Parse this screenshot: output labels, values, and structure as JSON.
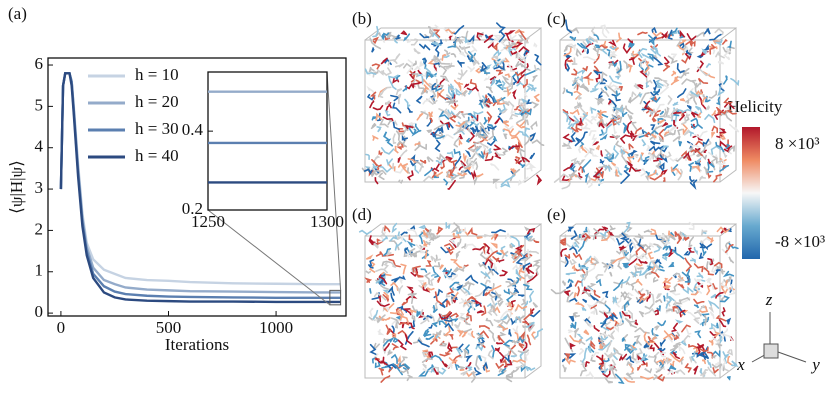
{
  "panel_label": "(a)",
  "chart_data": [
    {
      "type": "line",
      "xlabel": "Iterations",
      "ylabel": "⟨ψ|H|ψ⟩",
      "x": [
        0,
        10,
        20,
        30,
        40,
        50,
        60,
        80,
        100,
        120,
        150,
        200,
        250,
        300,
        400,
        500,
        600,
        800,
        1000,
        1200,
        1300
      ],
      "series": [
        {
          "name": "h = 10",
          "color": "#c6d3e3",
          "values": [
            3,
            5.5,
            5.8,
            5.8,
            5.8,
            5.6,
            5.0,
            3.6,
            2.4,
            1.7,
            1.3,
            1.05,
            0.95,
            0.85,
            0.8,
            0.78,
            0.75,
            0.72,
            0.71,
            0.7,
            0.7
          ]
        },
        {
          "name": "h = 20",
          "color": "#94abca",
          "values": [
            3,
            5.5,
            5.8,
            5.8,
            5.8,
            5.6,
            4.9,
            3.5,
            2.3,
            1.6,
            1.1,
            0.8,
            0.7,
            0.62,
            0.57,
            0.55,
            0.53,
            0.52,
            0.51,
            0.5,
            0.5
          ]
        },
        {
          "name": "h = 30",
          "color": "#5b7fb0",
          "values": [
            3,
            5.5,
            5.8,
            5.8,
            5.8,
            5.6,
            4.9,
            3.4,
            2.2,
            1.5,
            0.95,
            0.65,
            0.52,
            0.46,
            0.42,
            0.4,
            0.39,
            0.38,
            0.37,
            0.37,
            0.37
          ]
        },
        {
          "name": "h = 40",
          "color": "#2c4a80",
          "values": [
            3,
            5.5,
            5.8,
            5.8,
            5.8,
            5.5,
            4.8,
            3.3,
            2.1,
            1.4,
            0.85,
            0.5,
            0.38,
            0.33,
            0.3,
            0.29,
            0.28,
            0.28,
            0.27,
            0.27,
            0.27
          ]
        }
      ],
      "xlim": [
        -60,
        1325
      ],
      "ylim": [
        -0.07,
        6.17
      ],
      "xticks": [
        0,
        500,
        1000
      ],
      "yticks": [
        0,
        1,
        2,
        3,
        4,
        5,
        6
      ]
    },
    {
      "type": "line",
      "x": [
        1250,
        1300
      ],
      "series": [
        {
          "color": "#94abca",
          "values": [
            0.5,
            0.5
          ]
        },
        {
          "color": "#5b7fb0",
          "values": [
            0.37,
            0.37
          ]
        },
        {
          "color": "#2c4a80",
          "values": [
            0.27,
            0.27
          ]
        }
      ],
      "xlim": [
        1250,
        1300
      ],
      "ylim": [
        0.2,
        0.55
      ],
      "xticks": [
        1250,
        1300
      ],
      "yticks": [
        0.2,
        0.4
      ]
    }
  ],
  "render_panels": [
    {
      "label": "(b)"
    },
    {
      "label": "(c)"
    },
    {
      "label": "(d)"
    },
    {
      "label": "(e)"
    }
  ],
  "colorbar": {
    "title": "Helicity",
    "max_label": "8 ×10³",
    "min_label": "-8 ×10³"
  },
  "axes_triad": {
    "x": "x",
    "y": "y",
    "z": "z"
  }
}
